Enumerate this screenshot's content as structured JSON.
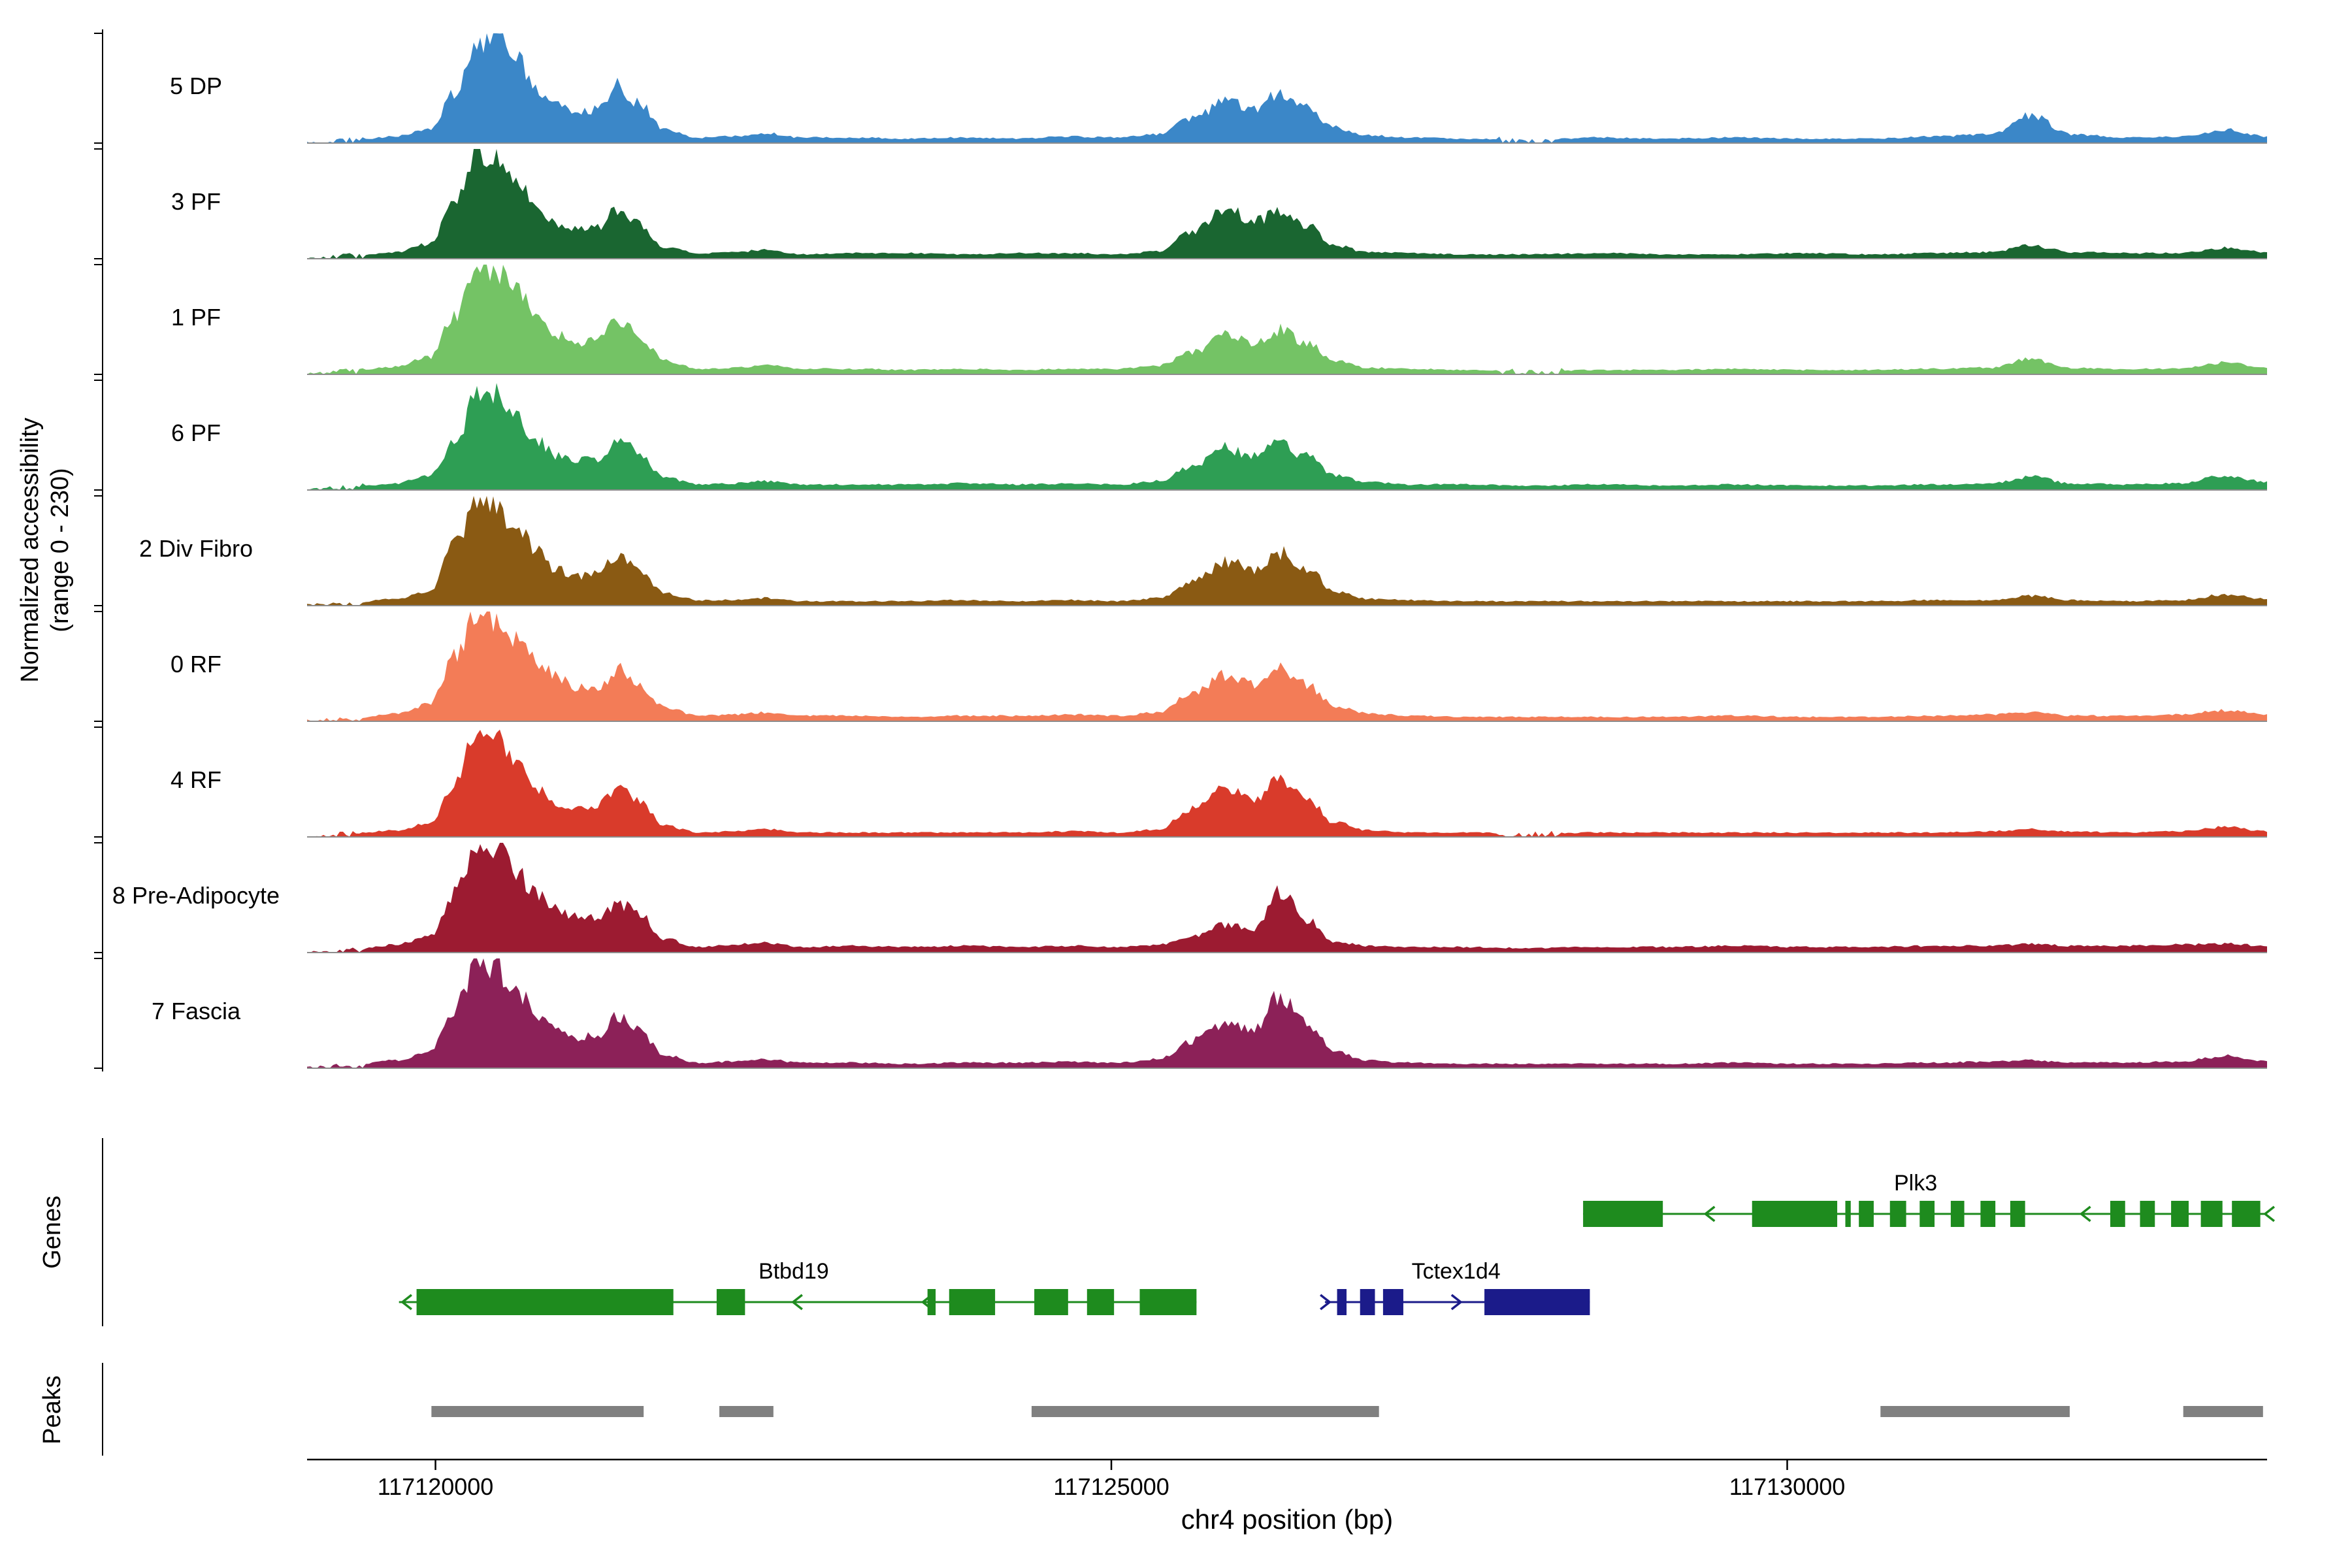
{
  "figure": {
    "background": "#ffffff"
  },
  "y_axis": {
    "label_line1": "Normalized accessibility",
    "label_line2": "(range 0 - 230)"
  },
  "sections": {
    "genes_label": "Genes",
    "peaks_label": "Peaks"
  },
  "x_axis": {
    "title": "chr4 position (bp)",
    "ticks": [
      {
        "bp": 117120000,
        "label": "117120000"
      },
      {
        "bp": 117125000,
        "label": "117125000"
      },
      {
        "bp": 117130000,
        "label": "117130000"
      }
    ]
  },
  "colors": {
    "baseline": "#8c8c8c",
    "axis": "#000000",
    "text": "#000000",
    "peak": "#808080"
  },
  "chart_data": {
    "type": "area",
    "subtype": "genome-coverage-tracks",
    "title": "",
    "xlabel": "chr4 position (bp)",
    "ylabel": "Normalized accessibility (range 0 - 230)",
    "x_range_bp": [
      117119050,
      117133550
    ],
    "track_y_range": [
      0,
      230
    ],
    "legend_position": "none",
    "grid": false,
    "x_bp": [
      117119050,
      117119400,
      117119700,
      117119950,
      117120150,
      117120300,
      117120450,
      117120600,
      117120750,
      117120900,
      117121050,
      117121200,
      117121350,
      117121500,
      117121700,
      117121950,
      117122200,
      117122450,
      117122700,
      117123100,
      117123500,
      117123900,
      117124300,
      117124700,
      117125050,
      117125350,
      117125600,
      117125850,
      117126050,
      117126250,
      117126450,
      117126650,
      117126900,
      117127200,
      117127600,
      117128100,
      117128600,
      117129100,
      117129600,
      117130100,
      117130600,
      117131100,
      117131500,
      117131800,
      117132100,
      117132500,
      117132900,
      117133250,
      117133550
    ],
    "tracks": [
      {
        "label": "5 DP",
        "color": "#3b87c8",
        "values": [
          0.01,
          0.03,
          0.06,
          0.12,
          0.45,
          0.92,
          1.0,
          0.78,
          0.5,
          0.33,
          0.27,
          0.3,
          0.52,
          0.36,
          0.12,
          0.05,
          0.06,
          0.09,
          0.05,
          0.05,
          0.04,
          0.05,
          0.04,
          0.06,
          0.05,
          0.08,
          0.22,
          0.38,
          0.3,
          0.45,
          0.32,
          0.14,
          0.07,
          0.05,
          0.04,
          0.03,
          0.05,
          0.04,
          0.05,
          0.04,
          0.04,
          0.06,
          0.08,
          0.25,
          0.08,
          0.05,
          0.06,
          0.12,
          0.06
        ]
      },
      {
        "label": "3 PF",
        "color": "#1a6631",
        "values": [
          0.01,
          0.03,
          0.06,
          0.13,
          0.5,
          0.95,
          0.92,
          0.7,
          0.46,
          0.31,
          0.26,
          0.28,
          0.45,
          0.32,
          0.1,
          0.05,
          0.06,
          0.08,
          0.04,
          0.05,
          0.05,
          0.04,
          0.05,
          0.05,
          0.04,
          0.07,
          0.25,
          0.45,
          0.34,
          0.42,
          0.3,
          0.12,
          0.06,
          0.05,
          0.04,
          0.04,
          0.05,
          0.04,
          0.04,
          0.05,
          0.04,
          0.05,
          0.06,
          0.12,
          0.06,
          0.05,
          0.05,
          0.1,
          0.06
        ]
      },
      {
        "label": "1 PF",
        "color": "#74c365",
        "values": [
          0.01,
          0.03,
          0.07,
          0.15,
          0.55,
          1.0,
          0.96,
          0.8,
          0.55,
          0.36,
          0.28,
          0.3,
          0.5,
          0.35,
          0.12,
          0.05,
          0.06,
          0.08,
          0.05,
          0.05,
          0.04,
          0.05,
          0.04,
          0.05,
          0.05,
          0.08,
          0.2,
          0.35,
          0.28,
          0.4,
          0.28,
          0.12,
          0.06,
          0.05,
          0.04,
          0.03,
          0.04,
          0.04,
          0.05,
          0.04,
          0.04,
          0.05,
          0.06,
          0.14,
          0.06,
          0.05,
          0.05,
          0.11,
          0.06
        ]
      },
      {
        "label": "6 PF",
        "color": "#2e9e54",
        "values": [
          0.01,
          0.03,
          0.06,
          0.12,
          0.45,
          0.85,
          0.88,
          0.66,
          0.46,
          0.31,
          0.26,
          0.28,
          0.48,
          0.33,
          0.11,
          0.05,
          0.06,
          0.08,
          0.05,
          0.05,
          0.05,
          0.06,
          0.05,
          0.06,
          0.05,
          0.08,
          0.22,
          0.38,
          0.3,
          0.42,
          0.3,
          0.13,
          0.07,
          0.05,
          0.05,
          0.04,
          0.05,
          0.04,
          0.05,
          0.04,
          0.04,
          0.05,
          0.06,
          0.12,
          0.06,
          0.05,
          0.06,
          0.13,
          0.07
        ]
      },
      {
        "label": "2 Div Fibro",
        "color": "#8a5a13",
        "values": [
          0.01,
          0.03,
          0.06,
          0.13,
          0.55,
          0.95,
          0.9,
          0.7,
          0.48,
          0.32,
          0.27,
          0.29,
          0.46,
          0.32,
          0.11,
          0.05,
          0.05,
          0.07,
          0.04,
          0.04,
          0.04,
          0.05,
          0.04,
          0.05,
          0.04,
          0.07,
          0.22,
          0.4,
          0.32,
          0.48,
          0.33,
          0.13,
          0.06,
          0.05,
          0.04,
          0.04,
          0.04,
          0.04,
          0.04,
          0.04,
          0.04,
          0.05,
          0.05,
          0.09,
          0.05,
          0.04,
          0.05,
          0.1,
          0.06
        ]
      },
      {
        "label": "0 RF",
        "color": "#f37c57",
        "values": [
          0.01,
          0.03,
          0.07,
          0.15,
          0.6,
          1.0,
          0.94,
          0.75,
          0.55,
          0.4,
          0.3,
          0.3,
          0.48,
          0.34,
          0.12,
          0.05,
          0.06,
          0.08,
          0.05,
          0.05,
          0.04,
          0.05,
          0.05,
          0.06,
          0.05,
          0.08,
          0.25,
          0.42,
          0.33,
          0.47,
          0.33,
          0.14,
          0.07,
          0.05,
          0.04,
          0.04,
          0.04,
          0.04,
          0.05,
          0.04,
          0.04,
          0.05,
          0.06,
          0.08,
          0.05,
          0.05,
          0.06,
          0.1,
          0.06
        ]
      },
      {
        "label": "4 RF",
        "color": "#d93b2b",
        "values": [
          0.01,
          0.03,
          0.06,
          0.12,
          0.5,
          0.92,
          0.88,
          0.65,
          0.45,
          0.3,
          0.26,
          0.28,
          0.45,
          0.32,
          0.1,
          0.04,
          0.05,
          0.07,
          0.04,
          0.04,
          0.04,
          0.04,
          0.04,
          0.05,
          0.04,
          0.07,
          0.25,
          0.45,
          0.35,
          0.52,
          0.35,
          0.13,
          0.06,
          0.04,
          0.04,
          0.03,
          0.04,
          0.04,
          0.04,
          0.04,
          0.04,
          0.04,
          0.05,
          0.07,
          0.05,
          0.04,
          0.05,
          0.09,
          0.05
        ]
      },
      {
        "label": "8 Pre-Adipocyte",
        "color": "#9c1b31",
        "values": [
          0.01,
          0.03,
          0.07,
          0.14,
          0.55,
          1.0,
          0.92,
          0.72,
          0.55,
          0.4,
          0.32,
          0.3,
          0.45,
          0.35,
          0.12,
          0.05,
          0.07,
          0.09,
          0.05,
          0.06,
          0.05,
          0.06,
          0.05,
          0.06,
          0.05,
          0.07,
          0.15,
          0.25,
          0.22,
          0.55,
          0.3,
          0.1,
          0.06,
          0.05,
          0.05,
          0.04,
          0.05,
          0.05,
          0.06,
          0.05,
          0.05,
          0.06,
          0.06,
          0.08,
          0.06,
          0.06,
          0.07,
          0.08,
          0.06
        ]
      },
      {
        "label": "7 Fascia",
        "color": "#8c2158",
        "values": [
          0.01,
          0.03,
          0.07,
          0.14,
          0.55,
          0.95,
          0.9,
          0.7,
          0.5,
          0.35,
          0.28,
          0.3,
          0.48,
          0.34,
          0.12,
          0.05,
          0.06,
          0.08,
          0.05,
          0.05,
          0.04,
          0.05,
          0.05,
          0.06,
          0.05,
          0.08,
          0.25,
          0.42,
          0.35,
          0.65,
          0.4,
          0.15,
          0.07,
          0.05,
          0.04,
          0.04,
          0.04,
          0.04,
          0.05,
          0.04,
          0.04,
          0.05,
          0.06,
          0.07,
          0.05,
          0.05,
          0.06,
          0.11,
          0.06
        ]
      }
    ],
    "genes": [
      {
        "name": "Plk3",
        "color": "#1e8b1e",
        "strand": "-",
        "row": 0,
        "start": 117128490,
        "end": 117133550,
        "label_bp": 117130950,
        "exons": [
          [
            117128490,
            117129080
          ],
          [
            117129740,
            117130370
          ],
          [
            117130430,
            117130470
          ],
          [
            117130530,
            117130640
          ],
          [
            117130760,
            117130880
          ],
          [
            117130980,
            117131090
          ],
          [
            117131210,
            117131310
          ],
          [
            117131430,
            117131540
          ],
          [
            117131650,
            117131760
          ],
          [
            117132390,
            117132500
          ],
          [
            117132610,
            117132720
          ],
          [
            117132840,
            117132970
          ],
          [
            117133060,
            117133220
          ],
          [
            117133290,
            117133500
          ]
        ],
        "arrows": [
          117129400,
          117132180,
          117133540
        ]
      },
      {
        "name": "Btbd19",
        "color": "#1e8b1e",
        "strand": "-",
        "row": 1,
        "start": 117119730,
        "end": 117125630,
        "label_bp": 117122650,
        "exons": [
          [
            117119860,
            117121760
          ],
          [
            117122080,
            117122290
          ],
          [
            117123640,
            117123700
          ],
          [
            117123800,
            117124140
          ],
          [
            117124430,
            117124680
          ],
          [
            117124820,
            117125020
          ],
          [
            117125210,
            117125630
          ]
        ],
        "arrows": [
          117119760,
          117122650,
          117123610
        ]
      },
      {
        "name": "Tctex1d4",
        "color": "#1b1b8a",
        "strand": "+",
        "row": 1,
        "start": 117126580,
        "end": 117128540,
        "label_bp": 117127550,
        "exons": [
          [
            117126670,
            117126740
          ],
          [
            117126840,
            117126950
          ],
          [
            117127010,
            117127160
          ],
          [
            117127760,
            117128540
          ]
        ],
        "arrows": [
          117126610,
          117127580
        ]
      }
    ],
    "peaks": [
      [
        117119970,
        117121540
      ],
      [
        117122100,
        117122500
      ],
      [
        117124410,
        117126980
      ],
      [
        117130690,
        117132090
      ],
      [
        117132930,
        117133520
      ]
    ]
  }
}
